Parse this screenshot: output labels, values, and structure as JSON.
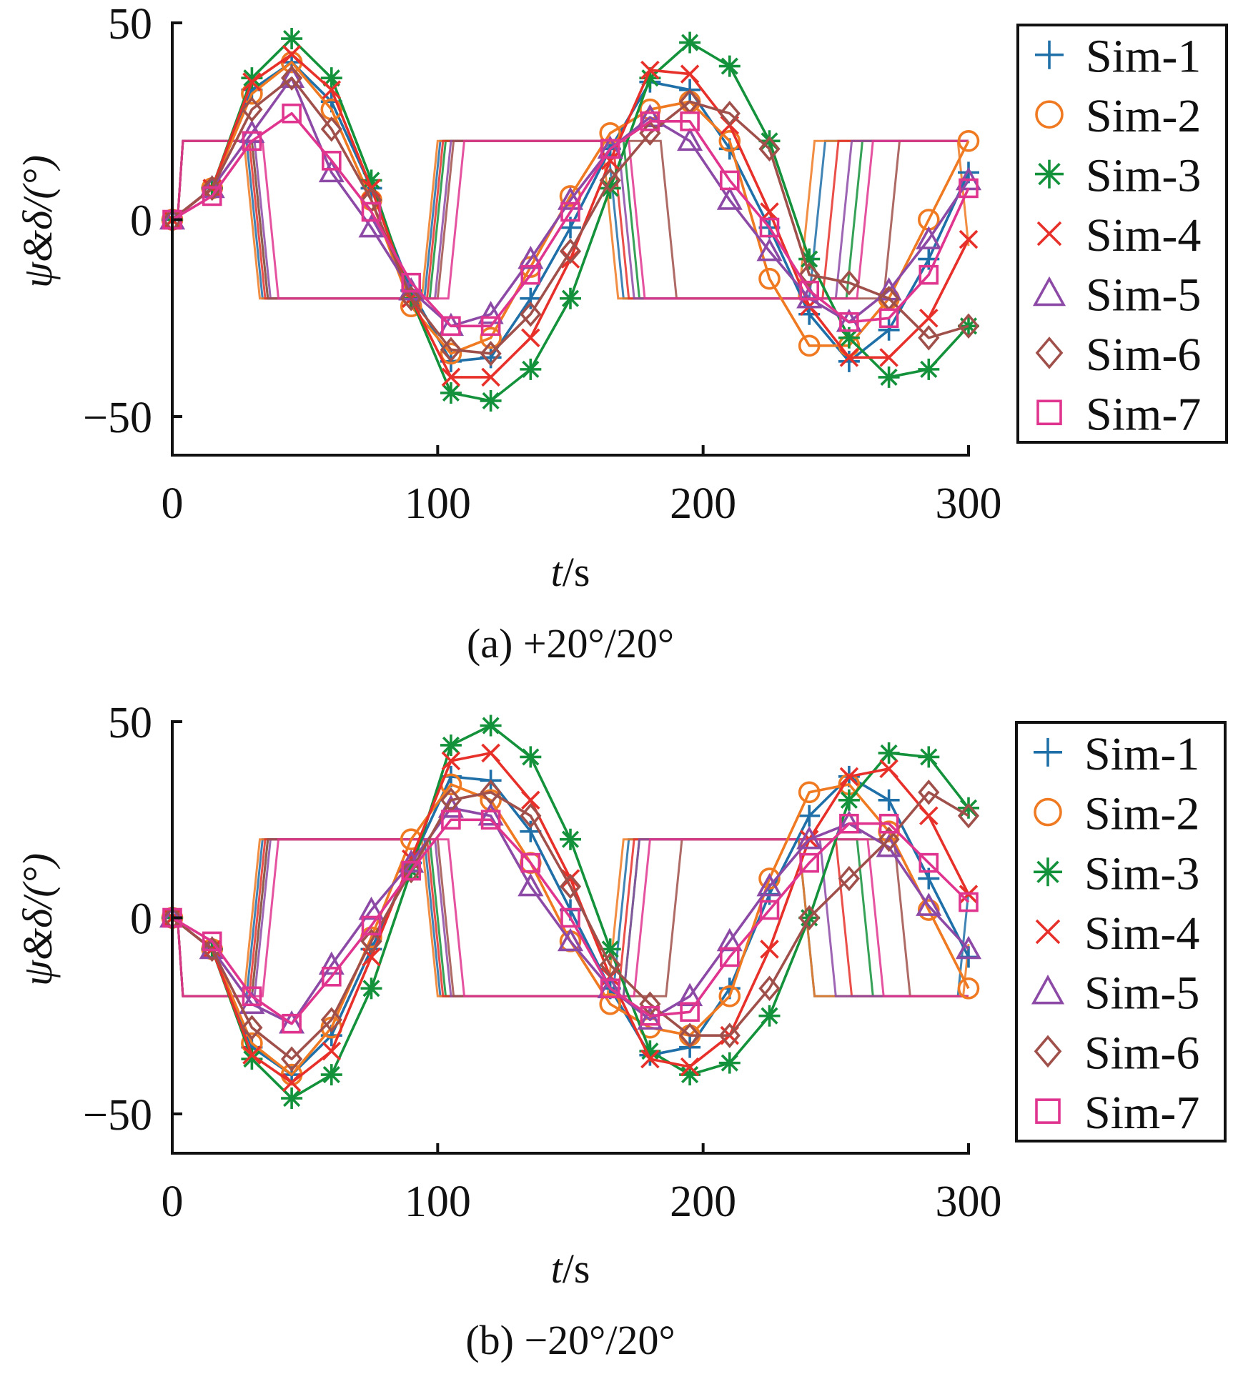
{
  "chart_data": [
    {
      "id": "a",
      "type": "line",
      "caption": "(a) +20°/20°",
      "xlabel_italic": "t",
      "xlabel_rest": "/s",
      "ylabel": "ψ&δ/(°)",
      "xlim": [
        0,
        300
      ],
      "ylim": [
        -60,
        50
      ],
      "xticks": [
        0,
        100,
        200,
        300
      ],
      "xtick_labels": [
        "0",
        "100",
        "200",
        "300"
      ],
      "yticks": [
        50,
        0,
        -50
      ],
      "ytick_labels": [
        "50",
        "0",
        "−50"
      ],
      "legend_position": "right",
      "marker_times": [
        0,
        15,
        30,
        45,
        60,
        75,
        90,
        105,
        120,
        135,
        150,
        165,
        180,
        195,
        210,
        225,
        240,
        255,
        270,
        285,
        300
      ],
      "series": [
        {
          "name": "Sim-1",
          "marker": "plus",
          "color": "#1f6fa8",
          "heading": [
            0,
            8,
            33,
            40,
            30,
            8,
            -18,
            -36,
            -35,
            -20,
            -2,
            18,
            35,
            33,
            18,
            -2,
            -24,
            -36,
            -28,
            -10,
            12
          ],
          "rudder_switch_times": [
            2,
            28,
            95,
            164,
            240
          ],
          "rudder_start": 0
        },
        {
          "name": "Sim-2",
          "marker": "circle",
          "color": "#ef7a22",
          "heading": [
            0,
            8,
            32,
            40,
            28,
            5,
            -22,
            -34,
            -30,
            -12,
            6,
            22,
            28,
            30,
            20,
            -15,
            -32,
            -32,
            -20,
            0,
            20
          ],
          "rudder_switch_times": [
            2,
            27,
            94,
            162,
            236,
            296
          ],
          "rudder_start": 0
        },
        {
          "name": "Sim-3",
          "marker": "asterisk",
          "color": "#13923b",
          "heading": [
            0,
            8,
            36,
            46,
            36,
            10,
            -20,
            -44,
            -46,
            -38,
            -20,
            8,
            36,
            45,
            39,
            20,
            -10,
            -30,
            -40,
            -38,
            -27
          ],
          "rudder_switch_times": [
            2,
            30,
            97,
            170,
            254
          ],
          "rudder_start": 0
        },
        {
          "name": "Sim-4",
          "marker": "x",
          "color": "#e8302a",
          "heading": [
            0,
            8,
            35,
            42,
            33,
            8,
            -20,
            -40,
            -40,
            -30,
            -10,
            15,
            38,
            37,
            24,
            2,
            -22,
            -35,
            -35,
            -25,
            -5
          ],
          "rudder_switch_times": [
            2,
            29,
            96,
            166,
            245
          ],
          "rudder_start": 0
        },
        {
          "name": "Sim-5",
          "marker": "triangle",
          "color": "#8c4aa6",
          "heading": [
            0,
            8,
            22,
            36,
            12,
            -2,
            -18,
            -27,
            -24,
            -10,
            5,
            18,
            26,
            20,
            5,
            -8,
            -20,
            -26,
            -18,
            -5,
            10
          ],
          "rudder_switch_times": [
            2,
            31,
            99,
            168,
            250
          ],
          "rudder_start": 0
        },
        {
          "name": "Sim-6",
          "marker": "diamond",
          "color": "#a0504a",
          "heading": [
            0,
            8,
            28,
            36,
            23,
            5,
            -20,
            -33,
            -34,
            -24,
            -8,
            10,
            22,
            30,
            27,
            18,
            -14,
            -16,
            -20,
            -30,
            -27
          ],
          "rudder_switch_times": [
            2,
            30,
            100,
            184,
            268
          ],
          "rudder_start": 0
        },
        {
          "name": "Sim-7",
          "marker": "square",
          "color": "#e0358f",
          "heading": [
            0,
            6,
            20,
            27,
            15,
            2,
            -16,
            -27,
            -27,
            -14,
            2,
            18,
            25,
            25,
            10,
            -2,
            -18,
            -26,
            -25,
            -14,
            8
          ],
          "rudder_switch_times": [
            2,
            34,
            104,
            172,
            258
          ],
          "rudder_start": 0
        }
      ],
      "rudder_amplitude": 20
    },
    {
      "id": "b",
      "type": "line",
      "caption": "(b) −20°/20°",
      "xlabel_italic": "t",
      "xlabel_rest": "/s",
      "ylabel": "ψ&δ/(°)",
      "xlim": [
        0,
        300
      ],
      "ylim": [
        -60,
        50
      ],
      "xticks": [
        0,
        100,
        200,
        300
      ],
      "xtick_labels": [
        "0",
        "100",
        "200",
        "300"
      ],
      "yticks": [
        50,
        0,
        -50
      ],
      "ytick_labels": [
        "50",
        "0",
        "−50"
      ],
      "legend_position": "right",
      "marker_times": [
        0,
        15,
        30,
        45,
        60,
        75,
        90,
        105,
        120,
        135,
        150,
        165,
        180,
        195,
        210,
        225,
        240,
        255,
        270,
        285,
        300
      ],
      "series": [
        {
          "name": "Sim-1",
          "marker": "plus",
          "color": "#1f6fa8",
          "heading": [
            0,
            -8,
            -33,
            -40,
            -30,
            -8,
            14,
            36,
            35,
            22,
            2,
            -18,
            -35,
            -33,
            -18,
            6,
            26,
            36,
            30,
            10,
            -10
          ],
          "rudder_switch_times": [
            2,
            28,
            95,
            166,
            236,
            296
          ],
          "rudder_start": 0
        },
        {
          "name": "Sim-2",
          "marker": "circle",
          "color": "#ef7a22",
          "heading": [
            0,
            -8,
            -32,
            -40,
            -28,
            -5,
            20,
            34,
            30,
            14,
            -6,
            -22,
            -28,
            -30,
            -20,
            10,
            32,
            34,
            22,
            2,
            -18
          ],
          "rudder_switch_times": [
            2,
            27,
            94,
            164,
            236,
            298
          ],
          "rudder_start": 0
        },
        {
          "name": "Sim-3",
          "marker": "asterisk",
          "color": "#13923b",
          "heading": [
            0,
            -8,
            -36,
            -46,
            -40,
            -18,
            12,
            44,
            49,
            41,
            20,
            -8,
            -34,
            -40,
            -37,
            -25,
            0,
            30,
            42,
            41,
            28
          ],
          "rudder_switch_times": [
            2,
            30,
            97,
            170,
            258
          ],
          "rudder_start": 0
        },
        {
          "name": "Sim-4",
          "marker": "x",
          "color": "#e8302a",
          "heading": [
            0,
            -8,
            -35,
            -42,
            -34,
            -10,
            15,
            40,
            42,
            30,
            10,
            -15,
            -36,
            -38,
            -30,
            -8,
            20,
            36,
            38,
            26,
            6
          ],
          "rudder_switch_times": [
            2,
            29,
            96,
            168,
            250
          ],
          "rudder_start": 0
        },
        {
          "name": "Sim-5",
          "marker": "triangle",
          "color": "#8c4aa6",
          "heading": [
            0,
            -8,
            -22,
            -27,
            -12,
            2,
            14,
            28,
            26,
            8,
            -6,
            -18,
            -26,
            -20,
            -6,
            8,
            20,
            24,
            18,
            3,
            -8
          ],
          "rudder_switch_times": [
            2,
            31,
            99,
            170,
            244
          ],
          "rudder_start": 0
        },
        {
          "name": "Sim-6",
          "marker": "diamond",
          "color": "#a0504a",
          "heading": [
            0,
            -8,
            -28,
            -36,
            -26,
            -6,
            12,
            30,
            32,
            26,
            8,
            -12,
            -22,
            -30,
            -30,
            -18,
            0,
            10,
            20,
            32,
            26
          ],
          "rudder_switch_times": [
            2,
            30,
            100,
            186,
            272
          ],
          "rudder_start": 0
        },
        {
          "name": "Sim-7",
          "marker": "square",
          "color": "#e0358f",
          "heading": [
            0,
            -6,
            -20,
            -27,
            -15,
            -2,
            12,
            25,
            25,
            14,
            0,
            -18,
            -25,
            -24,
            -10,
            2,
            14,
            24,
            24,
            14,
            4
          ],
          "rudder_switch_times": [
            2,
            34,
            104,
            174,
            262
          ],
          "rudder_start": 0
        }
      ],
      "rudder_amplitude": 20
    }
  ]
}
